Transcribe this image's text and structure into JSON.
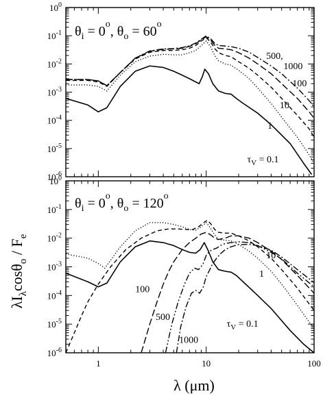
{
  "chart_data": [
    {
      "type": "line",
      "panel": "top",
      "title": "θi = 0°, θo = 60°",
      "xscale": "log",
      "yscale": "log",
      "xlim": [
        0.5,
        100
      ],
      "ylim": [
        1e-06,
        1
      ],
      "grid": false,
      "x_ticks": [
        1,
        10,
        100
      ],
      "x_ticklabels": [
        "",
        "",
        ""
      ],
      "y_ticks": [
        1e-06,
        1e-05,
        0.0001,
        0.001,
        0.01,
        0.1,
        1
      ],
      "y_ticklabels": [
        {
          "base": "10",
          "exp": "-6"
        },
        {
          "base": "10",
          "exp": "-5"
        },
        {
          "base": "10",
          "exp": "-4"
        },
        {
          "base": "10",
          "exp": "-3"
        },
        {
          "base": "10",
          "exp": "-2"
        },
        {
          "base": "10",
          "exp": "-1"
        },
        {
          "base": "10",
          "exp": "0"
        }
      ],
      "series": [
        {
          "name": "τV = 0.1",
          "dash": "solid",
          "x": [
            0.5,
            0.8,
            1.0,
            1.2,
            1.6,
            2.2,
            3,
            4,
            5,
            6,
            7,
            8,
            8.6,
            9.2,
            9.7,
            10.5,
            11.5,
            13,
            15,
            17,
            19,
            22,
            30,
            40,
            60,
            80,
            95
          ],
          "y": [
            0.0006,
            0.00035,
            0.0002,
            0.00028,
            0.0016,
            0.0055,
            0.0085,
            0.0075,
            0.0055,
            0.004,
            0.003,
            0.0023,
            0.002,
            0.0035,
            0.0065,
            0.0045,
            0.002,
            0.0011,
            0.0009,
            0.00085,
            0.0006,
            0.0004,
            0.00018,
            7e-05,
            1.5e-05,
            3e-06,
            1.2e-06
          ]
        },
        {
          "name": "1",
          "dash": "dotted",
          "x": [
            0.5,
            0.8,
            1.0,
            1.2,
            1.6,
            2.2,
            3,
            4,
            5,
            6,
            7,
            8,
            9,
            10,
            11,
            12,
            13,
            15,
            17,
            20,
            25,
            30,
            40,
            50,
            70,
            90,
            100
          ],
          "y": [
            0.0018,
            0.0018,
            0.0016,
            0.0011,
            0.004,
            0.012,
            0.019,
            0.022,
            0.021,
            0.021,
            0.025,
            0.03,
            0.045,
            0.065,
            0.04,
            0.02,
            0.013,
            0.01,
            0.009,
            0.006,
            0.003,
            0.0014,
            0.0004,
            0.00013,
            2.5e-05,
            6e-06,
            3e-06
          ]
        },
        {
          "name": "10",
          "dash": "dashed",
          "x": [
            0.5,
            0.8,
            1.0,
            1.2,
            1.6,
            2.2,
            3,
            4,
            5,
            6,
            7,
            8,
            9,
            10,
            11,
            12,
            13,
            15,
            17,
            20,
            25,
            30,
            40,
            50,
            70,
            90,
            100
          ],
          "y": [
            0.0026,
            0.0026,
            0.0023,
            0.0016,
            0.005,
            0.015,
            0.026,
            0.03,
            0.03,
            0.032,
            0.036,
            0.045,
            0.065,
            0.085,
            0.06,
            0.035,
            0.025,
            0.02,
            0.018,
            0.012,
            0.007,
            0.004,
            0.0015,
            0.0006,
            0.00015,
            5e-05,
            2.5e-05
          ]
        },
        {
          "name": "100",
          "dash": "longdash",
          "x": [
            0.5,
            0.8,
            1.0,
            1.2,
            1.6,
            2.2,
            3,
            4,
            5,
            6,
            7,
            8,
            9,
            10,
            11,
            12,
            13,
            15,
            17,
            20,
            25,
            30,
            40,
            50,
            70,
            90,
            100
          ],
          "y": [
            0.0028,
            0.0028,
            0.0025,
            0.0017,
            0.005,
            0.016,
            0.028,
            0.033,
            0.034,
            0.036,
            0.042,
            0.052,
            0.072,
            0.092,
            0.07,
            0.046,
            0.036,
            0.034,
            0.032,
            0.025,
            0.016,
            0.01,
            0.0045,
            0.002,
            0.0006,
            0.0002,
            0.00012
          ]
        },
        {
          "name": "500, 1000",
          "dash": "dashdot",
          "x": [
            0.5,
            0.8,
            1.0,
            1.2,
            1.6,
            2.2,
            3,
            4,
            5,
            6,
            7,
            8,
            9,
            10,
            11,
            12,
            13,
            15,
            17,
            20,
            25,
            30,
            40,
            50,
            70,
            90,
            100
          ],
          "y": [
            0.0028,
            0.0028,
            0.0025,
            0.0017,
            0.005,
            0.016,
            0.029,
            0.034,
            0.035,
            0.038,
            0.044,
            0.055,
            0.075,
            0.1,
            0.078,
            0.054,
            0.045,
            0.043,
            0.041,
            0.036,
            0.026,
            0.017,
            0.0085,
            0.0045,
            0.0014,
            0.0005,
            0.0003
          ]
        }
      ],
      "annotations": [
        {
          "text": "500,",
          "x": 37,
          "y": 0.015
        },
        {
          "text": "1000",
          "x": 52,
          "y": 0.0065
        },
        {
          "text": "100",
          "x": 63,
          "y": 0.0016
        },
        {
          "text": "10",
          "x": 48,
          "y": 0.00027
        },
        {
          "text": "1",
          "x": 37,
          "y": 5e-05
        },
        {
          "text": "τV = 0.1",
          "x": 24,
          "y": 3.2e-06
        }
      ]
    },
    {
      "type": "line",
      "panel": "bottom",
      "title": "θi = 0°, θo = 120°",
      "xscale": "log",
      "yscale": "log",
      "xlim": [
        0.5,
        100
      ],
      "ylim": [
        1e-06,
        1
      ],
      "grid": false,
      "xlabel": "λ (μm)",
      "ylabel": "λIλcosθo / Fe",
      "x_ticks": [
        1,
        10,
        100
      ],
      "x_ticklabels": [
        "1",
        "10",
        "100"
      ],
      "y_ticks": [
        1e-06,
        1e-05,
        0.0001,
        0.001,
        0.01,
        0.1,
        1
      ],
      "y_ticklabels": [
        {
          "base": "10",
          "exp": "-6"
        },
        {
          "base": "10",
          "exp": "-5"
        },
        {
          "base": "10",
          "exp": "-4"
        },
        {
          "base": "10",
          "exp": "-3"
        },
        {
          "base": "10",
          "exp": "-2"
        },
        {
          "base": "10",
          "exp": "-1"
        },
        {
          "base": "10",
          "exp": "0"
        }
      ],
      "series": [
        {
          "name": "τV = 0.1",
          "dash": "solid",
          "x": [
            0.5,
            0.8,
            1.0,
            1.2,
            1.6,
            2.2,
            3,
            4,
            5,
            6,
            7,
            8,
            8.8,
            9.6,
            10.5,
            11.5,
            13,
            15,
            17,
            19,
            22,
            30,
            40,
            60,
            80,
            100
          ],
          "y": [
            0.0006,
            0.0003,
            0.0002,
            0.00027,
            0.0015,
            0.005,
            0.008,
            0.007,
            0.0055,
            0.004,
            0.0032,
            0.003,
            0.004,
            0.007,
            0.0035,
            0.0015,
            0.0008,
            0.0007,
            0.00065,
            0.0005,
            0.0003,
            0.0001,
            3.5e-05,
            6e-06,
            2e-06,
            1e-06
          ]
        },
        {
          "name": "1",
          "dash": "dotted",
          "x": [
            0.5,
            0.8,
            1.0,
            1.15,
            1.6,
            2.2,
            3,
            4,
            5,
            6,
            7,
            8,
            9,
            10,
            11,
            12,
            13,
            15,
            17,
            20,
            25,
            30,
            40,
            50,
            70,
            90,
            100
          ],
          "y": [
            0.0028,
            0.002,
            0.0013,
            0.0009,
            0.005,
            0.018,
            0.035,
            0.035,
            0.03,
            0.025,
            0.02,
            0.019,
            0.025,
            0.035,
            0.022,
            0.013,
            0.009,
            0.0085,
            0.008,
            0.006,
            0.0035,
            0.002,
            0.0007,
            0.00025,
            4.5e-05,
            1.2e-05,
            7e-06
          ]
        },
        {
          "name": "10",
          "dash": "dashed",
          "x": [
            0.5,
            0.6,
            0.7,
            0.8,
            1.0,
            1.3,
            1.8,
            2.5,
            3.5,
            4.5,
            5.5,
            6.5,
            7.5,
            8.5,
            9.5,
            10.2,
            11,
            12,
            13,
            15,
            17,
            20,
            25,
            30,
            40,
            50,
            70,
            100
          ],
          "y": [
            1e-06,
            5e-06,
            2e-05,
            6e-05,
            0.00025,
            0.001,
            0.004,
            0.01,
            0.018,
            0.021,
            0.021,
            0.02,
            0.02,
            0.025,
            0.035,
            0.042,
            0.032,
            0.02,
            0.016,
            0.015,
            0.015,
            0.012,
            0.008,
            0.005,
            0.002,
            0.0008,
            0.00018,
            3e-05
          ]
        },
        {
          "name": "100",
          "dash": "longdash",
          "x": [
            2.5,
            3,
            3.5,
            4,
            4.5,
            5,
            6,
            7,
            8,
            9,
            10,
            11,
            12,
            13,
            15,
            17,
            20,
            25,
            30,
            40,
            50,
            70,
            100
          ],
          "y": [
            1e-06,
            1e-05,
            6e-05,
            0.00025,
            0.0007,
            0.0015,
            0.004,
            0.007,
            0.01,
            0.014,
            0.016,
            0.013,
            0.01,
            0.009,
            0.01,
            0.012,
            0.012,
            0.01,
            0.007,
            0.0035,
            0.0018,
            0.0005,
            0.00012
          ]
        },
        {
          "name": "500",
          "dash": "dashdotdot",
          "x": [
            4.2,
            4.8,
            5.5,
            6.3,
            7,
            7.8,
            8.5,
            9.3,
            10,
            10.8,
            11.5,
            12.5,
            13.5,
            15,
            17,
            20,
            25,
            30,
            40,
            50,
            70,
            100
          ],
          "y": [
            1e-06,
            1e-05,
            6e-05,
            0.00025,
            0.0006,
            0.0009,
            0.0008,
            0.0012,
            0.0025,
            0.0035,
            0.004,
            0.0045,
            0.0055,
            0.0065,
            0.007,
            0.0075,
            0.007,
            0.0055,
            0.0032,
            0.0019,
            0.0006,
            0.0002
          ]
        },
        {
          "name": "1000",
          "dash": "dashdot",
          "x": [
            5.3,
            5.8,
            6.5,
            7.3,
            8,
            8.7,
            9.4,
            10,
            10.8,
            11.5,
            12.5,
            13.5,
            15,
            17,
            20,
            25,
            30,
            40,
            50,
            70,
            100
          ],
          "y": [
            1e-06,
            8e-06,
            4e-05,
            0.00012,
            0.00015,
            0.00012,
            0.0002,
            0.00045,
            0.0008,
            0.0013,
            0.002,
            0.0028,
            0.004,
            0.005,
            0.006,
            0.006,
            0.0055,
            0.0038,
            0.0022,
            0.0008,
            0.00028
          ]
        }
      ],
      "annotations": [
        {
          "text": "10",
          "x": 36,
          "y": 0.002
        },
        {
          "text": "1",
          "x": 31,
          "y": 0.00045
        },
        {
          "text": "100",
          "x": 2.2,
          "y": 0.00013
        },
        {
          "text": "500",
          "x": 3.4,
          "y": 1.4e-05
        },
        {
          "text": "1000",
          "x": 5.6,
          "y": 2.2e-06
        },
        {
          "text": "τV = 0.1",
          "x": 15.5,
          "y": 8e-06
        }
      ]
    }
  ]
}
